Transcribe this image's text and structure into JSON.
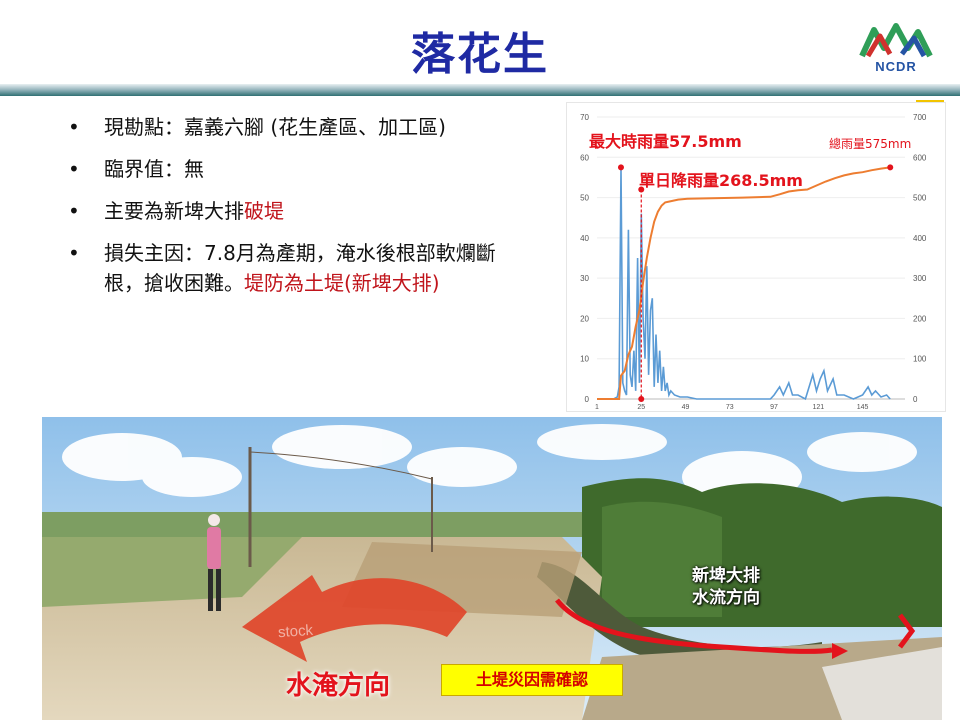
{
  "slide": {
    "title": "落花生",
    "logo_text": "NCDR"
  },
  "bullets": [
    {
      "segments": [
        {
          "text": "現勘點：嘉義六腳 (花生產區、加工區)",
          "red": false
        }
      ]
    },
    {
      "segments": [
        {
          "text": "臨界值：無",
          "red": false
        }
      ]
    },
    {
      "segments": [
        {
          "text": "主要為新埤大排",
          "red": false
        },
        {
          "text": "破堤",
          "red": true
        }
      ]
    },
    {
      "segments": [
        {
          "text": "損失主因：7.8月為產期，淹水後根部軟爛斷根，搶收困難。",
          "red": false
        },
        {
          "text": "堤防為土堤(新埤大排)",
          "red": true
        }
      ]
    }
  ],
  "chart_data": {
    "type": "line",
    "x_ticks": [
      1,
      25,
      49,
      73,
      97,
      121,
      145
    ],
    "x_range": [
      1,
      168
    ],
    "y_left_ticks": [
      0,
      10,
      20,
      30,
      40,
      50,
      60,
      70
    ],
    "y_left_range": [
      0,
      70
    ],
    "y_right_ticks": [
      0,
      100,
      200,
      300,
      400,
      500,
      600,
      700
    ],
    "y_right_range": [
      0,
      700
    ],
    "annotations": {
      "max_hourly": "最大時雨量57.5mm",
      "total": "總雨量575mm",
      "daily": "單日降雨量268.5mm"
    },
    "series": [
      {
        "axis": "left",
        "color": "#5b9bd5",
        "points": [
          [
            1,
            0
          ],
          [
            10,
            0
          ],
          [
            12,
            0.5
          ],
          [
            13,
            3
          ],
          [
            14,
            57.5
          ],
          [
            15,
            4
          ],
          [
            16,
            2
          ],
          [
            17,
            1
          ],
          [
            18,
            42
          ],
          [
            19,
            6
          ],
          [
            20,
            3
          ],
          [
            21,
            12
          ],
          [
            22,
            2
          ],
          [
            23,
            35
          ],
          [
            24,
            4
          ],
          [
            25,
            46
          ],
          [
            26,
            20
          ],
          [
            27,
            10
          ],
          [
            28,
            33
          ],
          [
            29,
            6
          ],
          [
            30,
            22
          ],
          [
            31,
            25
          ],
          [
            32,
            3
          ],
          [
            33,
            16
          ],
          [
            34,
            4
          ],
          [
            35,
            12
          ],
          [
            36,
            2
          ],
          [
            37,
            8
          ],
          [
            38,
            2
          ],
          [
            39,
            4
          ],
          [
            40,
            1
          ],
          [
            41,
            2
          ],
          [
            43,
            1
          ],
          [
            46,
            0.5
          ],
          [
            50,
            0.5
          ],
          [
            55,
            0
          ],
          [
            95,
            0
          ],
          [
            97,
            1
          ],
          [
            100,
            3
          ],
          [
            102,
            1
          ],
          [
            105,
            4
          ],
          [
            107,
            1
          ],
          [
            110,
            1
          ],
          [
            114,
            0
          ],
          [
            118,
            6
          ],
          [
            120,
            2
          ],
          [
            122,
            5
          ],
          [
            124,
            7
          ],
          [
            126,
            2
          ],
          [
            129,
            5
          ],
          [
            131,
            1
          ],
          [
            135,
            1
          ],
          [
            140,
            0
          ],
          [
            145,
            1
          ],
          [
            148,
            3
          ],
          [
            150,
            1
          ],
          [
            152,
            2
          ],
          [
            155,
            0.5
          ],
          [
            158,
            1
          ],
          [
            160,
            0
          ]
        ]
      },
      {
        "axis": "right",
        "color": "#ed7d31",
        "points": [
          [
            1,
            0
          ],
          [
            13,
            0
          ],
          [
            14,
            58
          ],
          [
            16,
            70
          ],
          [
            18,
            110
          ],
          [
            20,
            130
          ],
          [
            22,
            180
          ],
          [
            24,
            220
          ],
          [
            26,
            290
          ],
          [
            28,
            350
          ],
          [
            30,
            400
          ],
          [
            32,
            440
          ],
          [
            34,
            465
          ],
          [
            36,
            480
          ],
          [
            38,
            488
          ],
          [
            40,
            490
          ],
          [
            45,
            495
          ],
          [
            50,
            497
          ],
          [
            60,
            498
          ],
          [
            80,
            500
          ],
          [
            95,
            502
          ],
          [
            100,
            508
          ],
          [
            105,
            515
          ],
          [
            110,
            518
          ],
          [
            115,
            520
          ],
          [
            120,
            530
          ],
          [
            125,
            540
          ],
          [
            130,
            548
          ],
          [
            135,
            555
          ],
          [
            140,
            560
          ],
          [
            145,
            563
          ],
          [
            150,
            568
          ],
          [
            155,
            572
          ],
          [
            160,
            575
          ]
        ]
      }
    ],
    "markers": [
      {
        "x": 14,
        "y": 57.5,
        "axis": "left"
      },
      {
        "x": 25,
        "y": 52,
        "axis": "left"
      },
      {
        "x": 25,
        "y": 0,
        "axis": "left"
      },
      {
        "x": 160,
        "y": 575,
        "axis": "right"
      }
    ]
  },
  "photo": {
    "flow_label_line1": "新埤大排",
    "flow_label_line2": "水流方向",
    "flood_label": "水淹方向",
    "confirm_label": "土堤災因需確認",
    "watermark": "stock"
  },
  "colors": {
    "title": "#1f2aa3",
    "emphasis_red": "#c0141b",
    "rain_line": "#5b9bd5",
    "cumulative_line": "#ed7d31"
  }
}
